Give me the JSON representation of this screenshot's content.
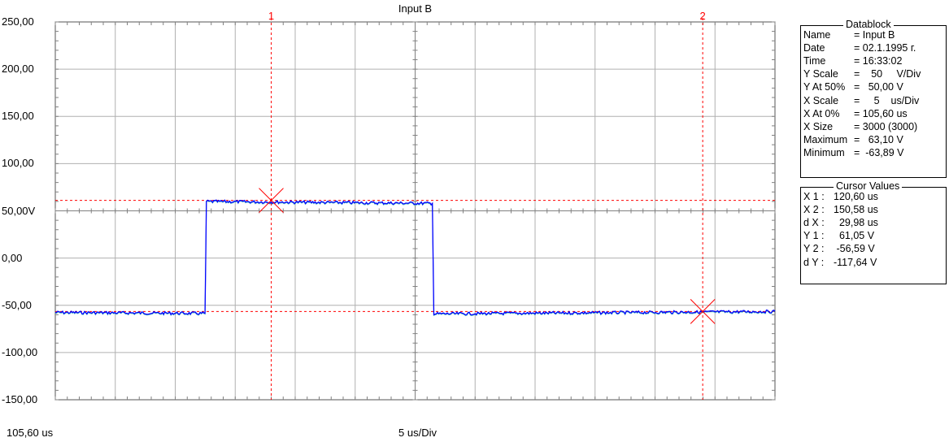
{
  "chart_data": {
    "type": "line",
    "title": "Input B",
    "ylim": [
      -150,
      250
    ],
    "yticks": [
      250,
      200,
      150,
      100,
      50,
      0,
      -50,
      -100,
      -150
    ],
    "ytick_labels": [
      "250,00",
      "200,00",
      "150,00",
      "100,00",
      "50,00",
      "0,00",
      "-50,00",
      "-100,00",
      "-150,00"
    ],
    "y_unit_marker": "V",
    "xlim_us": [
      105.6,
      155.6
    ],
    "x_start_label": "105,60 us",
    "x_scale_label": "5 us/Div",
    "grid": true,
    "series": [
      {
        "color": "#0000ff",
        "x": [
          105.6,
          116.0,
          116.1,
          131.8,
          131.9,
          155.6
        ],
        "values": [
          -57.5,
          -58.5,
          60.0,
          58.0,
          -59.0,
          -56.5
        ]
      }
    ],
    "cursors": [
      {
        "label": "1",
        "x": 120.6,
        "y": 61.05
      },
      {
        "label": "2",
        "x": 150.58,
        "y": -56.59
      }
    ]
  },
  "datablock": {
    "title": "Datablock",
    "rows": [
      {
        "key": "Name",
        "value": "= Input B"
      },
      {
        "key": "Date",
        "value": "= 02.1.1995 г."
      },
      {
        "key": "Time",
        "value": "= 16:33:02"
      },
      {
        "key": "Y Scale",
        "value": "=    50     V/Div"
      },
      {
        "key": "Y At 50%",
        "value": "=   50,00 V"
      },
      {
        "key": "X Scale",
        "value": "=     5    us/Div"
      },
      {
        "key": "X At 0%",
        "value": "= 105,60 us"
      },
      {
        "key": "X Size",
        "value": "= 3000 (3000)"
      },
      {
        "key": "Maximum",
        "value": "=   63,10 V"
      },
      {
        "key": "Minimum",
        "value": "=  -63,89 V"
      }
    ]
  },
  "cursor_values": {
    "title": "Cursor Values",
    "rows": [
      {
        "key": "X 1 :",
        "value": "120,60 us"
      },
      {
        "key": "X 2 :",
        "value": "150,58 us"
      },
      {
        "key": "d X :",
        "value": "  29,98 us"
      },
      {
        "key": "Y 1 :",
        "value": "  61,05 V"
      },
      {
        "key": "Y 2 :",
        "value": " -56,59 V"
      },
      {
        "key": "d Y :",
        "value": "-117,64 V"
      }
    ]
  }
}
